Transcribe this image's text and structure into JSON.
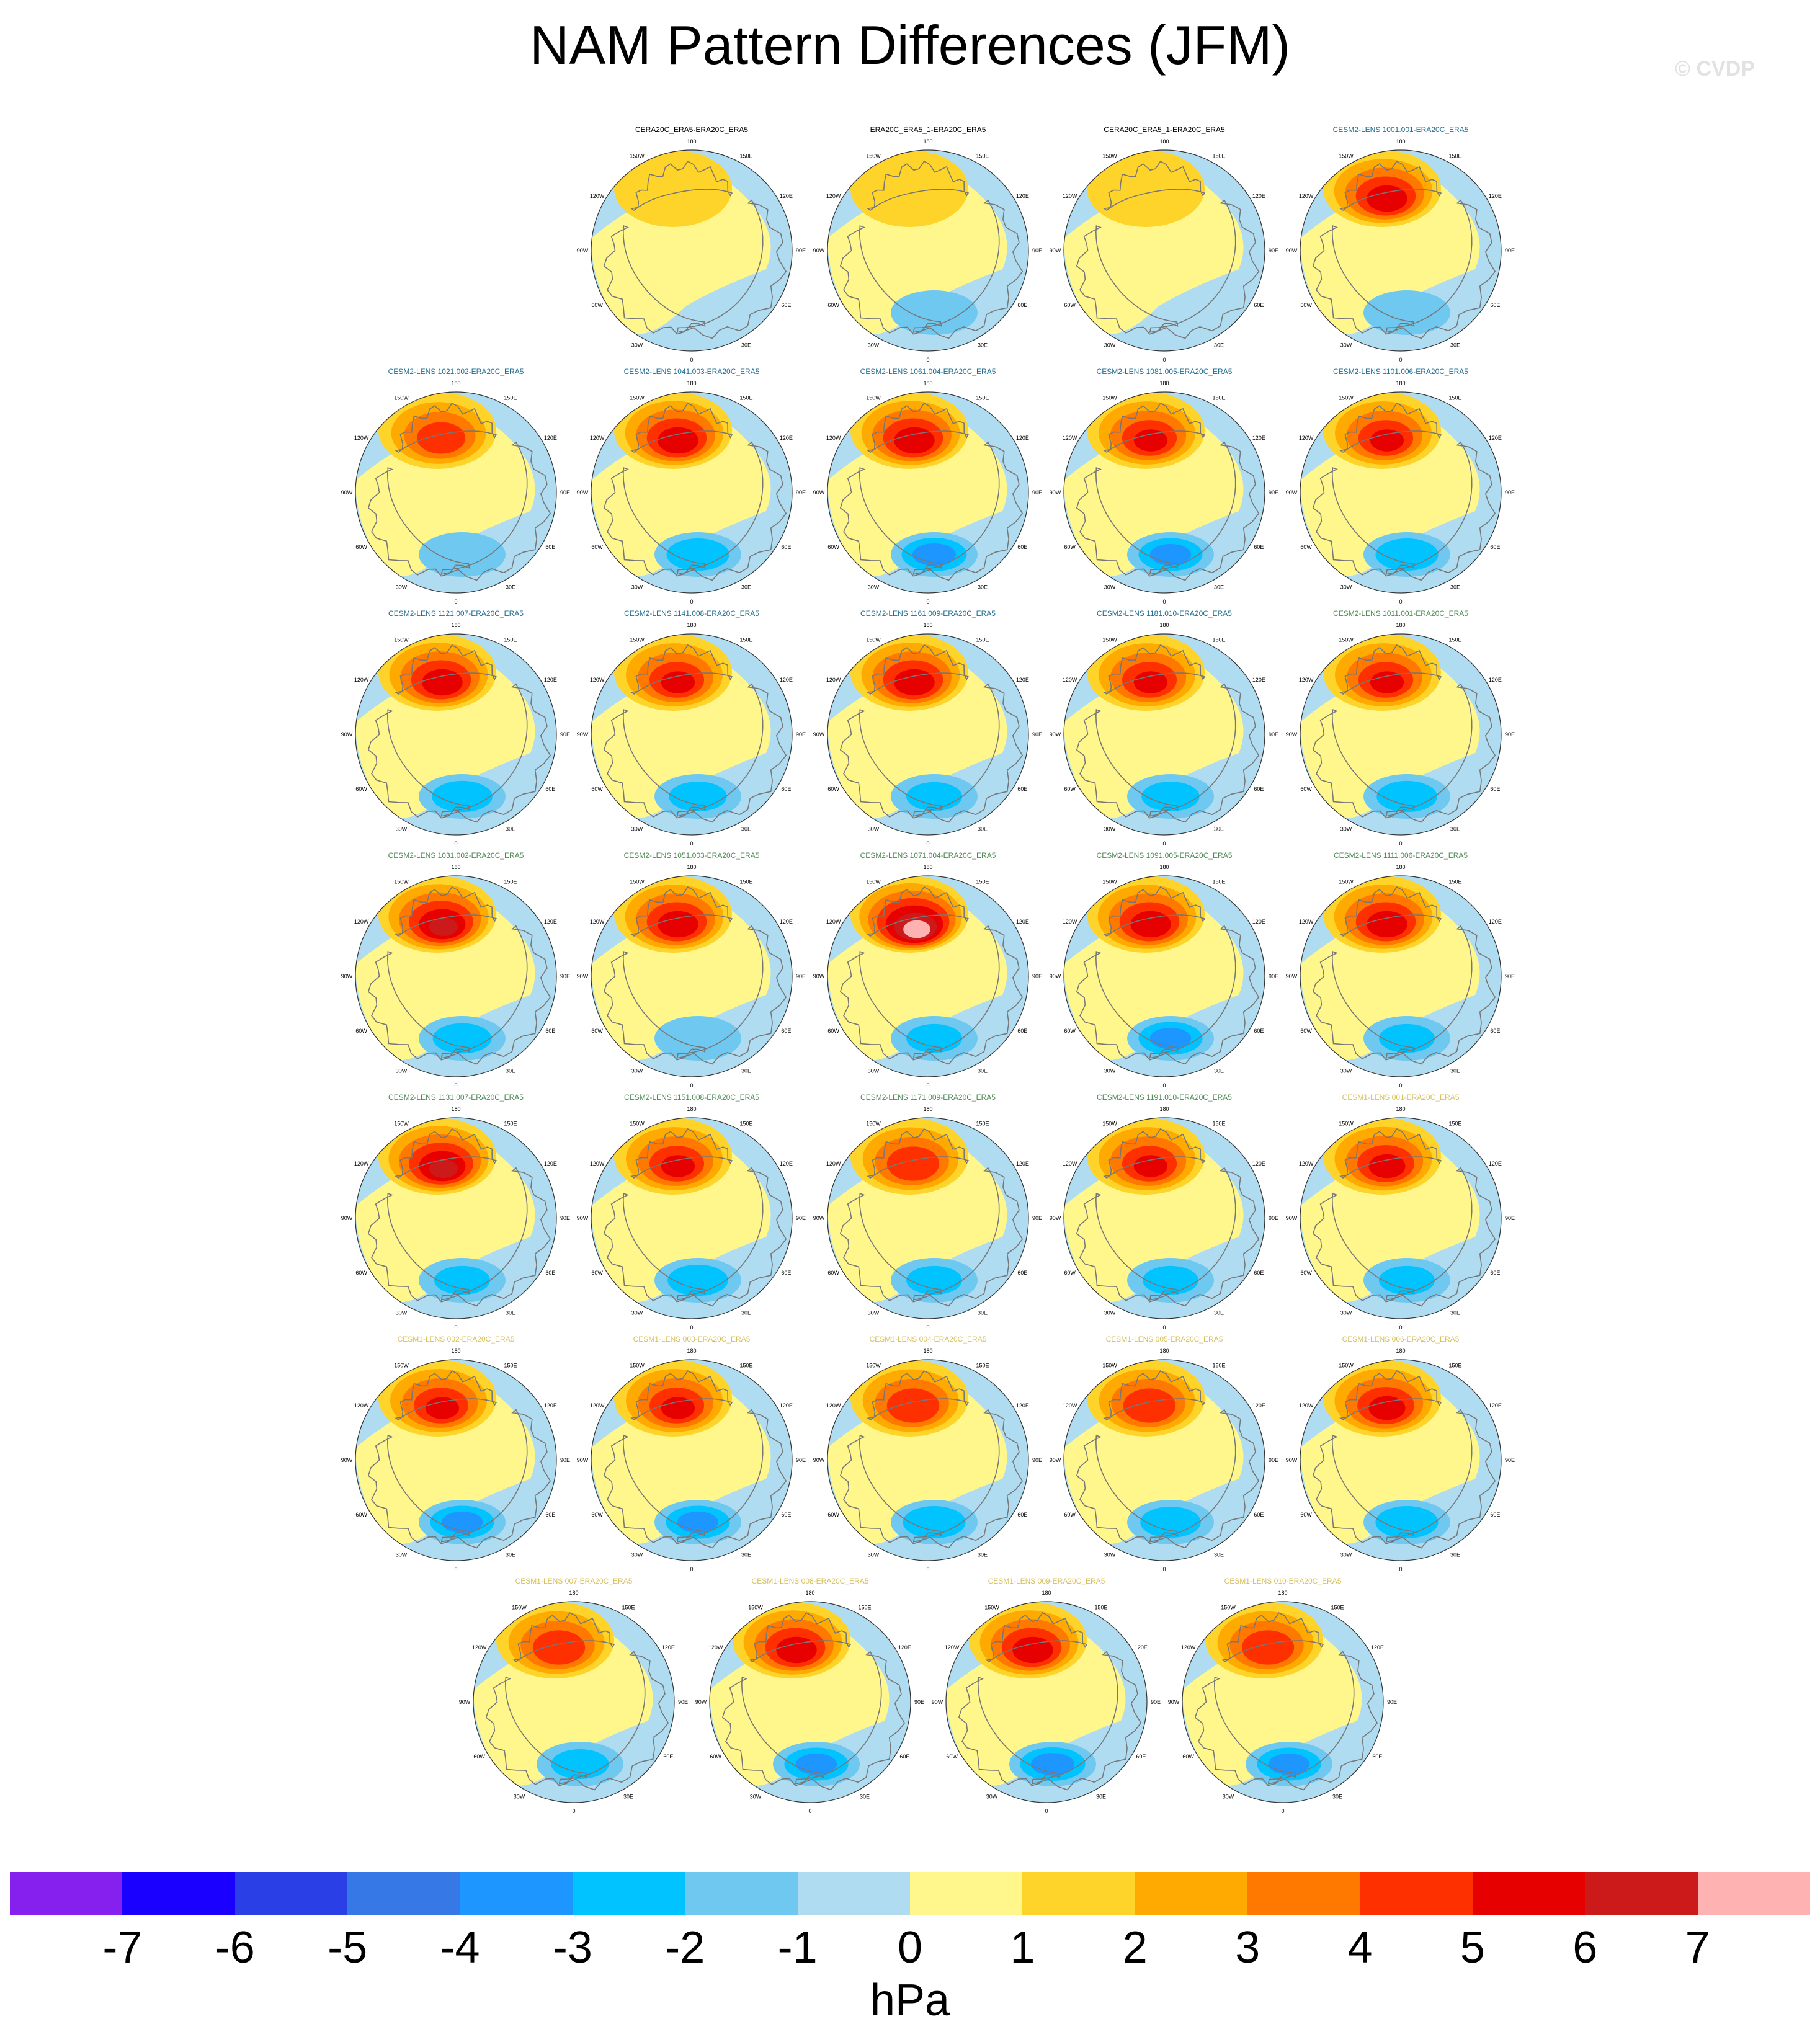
{
  "title": "NAM Pattern Differences (JFM)",
  "credit": "© CVDP",
  "map_labels": [
    "180",
    "150E",
    "120E",
    "90E",
    "60E",
    "30E",
    "0",
    "30W",
    "60W",
    "90W",
    "120W",
    "150W"
  ],
  "colors": {
    "land_outline": "#777777",
    "ocean_base": "#b0dcf2",
    "title_obs": "#000000",
    "title_cesm2_a": "#1f6f95",
    "title_cesm2_b": "#4e8a55",
    "title_cesm1": "#d8c15a"
  },
  "panels": [
    {
      "row": 0,
      "col": 1,
      "title": "CERA20C_ERA5-ERA20C_ERA5",
      "group": "obs",
      "max": 1.3,
      "min": -0.6
    },
    {
      "row": 0,
      "col": 2,
      "title": "ERA20C_ERA5_1-ERA20C_ERA5",
      "group": "obs",
      "max": 1.6,
      "min": -1.2
    },
    {
      "row": 0,
      "col": 3,
      "title": "CERA20C_ERA5_1-ERA20C_ERA5",
      "group": "obs",
      "max": 1.5,
      "min": -0.8
    },
    {
      "row": 0,
      "col": 4,
      "title": "CESM2-LENS 1001.001-ERA20C_ERA5",
      "group": "cesm2a",
      "max": 5.5,
      "min": -1.8
    },
    {
      "row": 1,
      "col": 0,
      "title": "CESM2-LENS 1021.002-ERA20C_ERA5",
      "group": "cesm2a",
      "max": 4.5,
      "min": -1.5
    },
    {
      "row": 1,
      "col": 1,
      "title": "CESM2-LENS 1041.003-ERA20C_ERA5",
      "group": "cesm2a",
      "max": 5.5,
      "min": -2.8
    },
    {
      "row": 1,
      "col": 2,
      "title": "CESM2-LENS 1061.004-ERA20C_ERA5",
      "group": "cesm2a",
      "max": 5.5,
      "min": -3.2
    },
    {
      "row": 1,
      "col": 3,
      "title": "CESM2-LENS 1081.005-ERA20C_ERA5",
      "group": "cesm2a",
      "max": 5.0,
      "min": -3.0
    },
    {
      "row": 1,
      "col": 4,
      "title": "CESM2-LENS 1101.006-ERA20C_ERA5",
      "group": "cesm2a",
      "max": 5.0,
      "min": -2.8
    },
    {
      "row": 2,
      "col": 0,
      "title": "CESM2-LENS 1121.007-ERA20C_ERA5",
      "group": "cesm2a",
      "max": 5.5,
      "min": -2.5
    },
    {
      "row": 2,
      "col": 1,
      "title": "CESM2-LENS 1141.008-ERA20C_ERA5",
      "group": "cesm2a",
      "max": 5.0,
      "min": -2.2
    },
    {
      "row": 2,
      "col": 2,
      "title": "CESM2-LENS 1161.009-ERA20C_ERA5",
      "group": "cesm2a",
      "max": 5.5,
      "min": -2.0
    },
    {
      "row": 2,
      "col": 3,
      "title": "CESM2-LENS 1181.010-ERA20C_ERA5",
      "group": "cesm2a",
      "max": 5.0,
      "min": -2.2
    },
    {
      "row": 2,
      "col": 4,
      "title": "CESM2-LENS 1011.001-ERA20C_ERA5",
      "group": "cesm2b",
      "max": 5.0,
      "min": -2.5
    },
    {
      "row": 3,
      "col": 0,
      "title": "CESM2-LENS 1031.002-ERA20C_ERA5",
      "group": "cesm2b",
      "max": 6.0,
      "min": -2.3
    },
    {
      "row": 3,
      "col": 1,
      "title": "CESM2-LENS 1051.003-ERA20C_ERA5",
      "group": "cesm2b",
      "max": 5.5,
      "min": -1.8
    },
    {
      "row": 3,
      "col": 2,
      "title": "CESM2-LENS 1071.004-ERA20C_ERA5",
      "group": "cesm2b",
      "max": 7.2,
      "min": -2.0
    },
    {
      "row": 3,
      "col": 3,
      "title": "CESM2-LENS 1091.005-ERA20C_ERA5",
      "group": "cesm2b",
      "max": 5.5,
      "min": -3.0
    },
    {
      "row": 3,
      "col": 4,
      "title": "CESM2-LENS 1111.006-ERA20C_ERA5",
      "group": "cesm2b",
      "max": 5.5,
      "min": -2.0
    },
    {
      "row": 4,
      "col": 0,
      "title": "CESM2-LENS 1131.007-ERA20C_ERA5",
      "group": "cesm2b",
      "max": 6.0,
      "min": -2.0
    },
    {
      "row": 4,
      "col": 1,
      "title": "CESM2-LENS 1151.008-ERA20C_ERA5",
      "group": "cesm2b",
      "max": 5.0,
      "min": -2.5
    },
    {
      "row": 4,
      "col": 2,
      "title": "CESM2-LENS 1171.009-ERA20C_ERA5",
      "group": "cesm2b",
      "max": 4.8,
      "min": -2.0
    },
    {
      "row": 4,
      "col": 3,
      "title": "CESM2-LENS 1191.010-ERA20C_ERA5",
      "group": "cesm2b",
      "max": 5.0,
      "min": -2.0
    },
    {
      "row": 4,
      "col": 4,
      "title": "CESM1-LENS 001-ERA20C_ERA5",
      "group": "cesm1",
      "max": 5.2,
      "min": -2.0
    },
    {
      "row": 5,
      "col": 0,
      "title": "CESM1-LENS 002-ERA20C_ERA5",
      "group": "cesm1",
      "max": 5.0,
      "min": -3.0
    },
    {
      "row": 5,
      "col": 1,
      "title": "CESM1-LENS 003-ERA20C_ERA5",
      "group": "cesm1",
      "max": 5.0,
      "min": -3.0
    },
    {
      "row": 5,
      "col": 2,
      "title": "CESM1-LENS 004-ERA20C_ERA5",
      "group": "cesm1",
      "max": 4.8,
      "min": -2.8
    },
    {
      "row": 5,
      "col": 3,
      "title": "CESM1-LENS 005-ERA20C_ERA5",
      "group": "cesm1",
      "max": 4.8,
      "min": -2.5
    },
    {
      "row": 5,
      "col": 4,
      "title": "CESM1-LENS 006-ERA20C_ERA5",
      "group": "cesm1",
      "max": 5.2,
      "min": -2.8
    },
    {
      "row": 6,
      "col": 0.5,
      "title": "CESM1-LENS 007-ERA20C_ERA5",
      "group": "cesm1",
      "max": 4.8,
      "min": -2.2
    },
    {
      "row": 6,
      "col": 1.5,
      "title": "CESM1-LENS 008-ERA20C_ERA5",
      "group": "cesm1",
      "max": 5.5,
      "min": -3.0
    },
    {
      "row": 6,
      "col": 2.5,
      "title": "CESM1-LENS 009-ERA20C_ERA5",
      "group": "cesm1",
      "max": 5.5,
      "min": -3.2
    },
    {
      "row": 6,
      "col": 3.5,
      "title": "CESM1-LENS 010-ERA20C_ERA5",
      "group": "cesm1",
      "max": 4.8,
      "min": -3.0
    }
  ],
  "colorbar": {
    "colors": [
      "#8520ee",
      "#1a00ff",
      "#2a40e6",
      "#3578e6",
      "#1e96ff",
      "#00c3ff",
      "#6fc8f0",
      "#b0dcf2",
      "#fff78c",
      "#ffd42a",
      "#ffaa00",
      "#ff7800",
      "#ff3000",
      "#e60000",
      "#cc1a1a",
      "#ffb2b2"
    ],
    "tick_labels": [
      "-7",
      "-6",
      "-5",
      "-4",
      "-3",
      "-2",
      "-1",
      "0",
      "1",
      "2",
      "3",
      "4",
      "5",
      "6",
      "7"
    ],
    "units": "hPa"
  }
}
